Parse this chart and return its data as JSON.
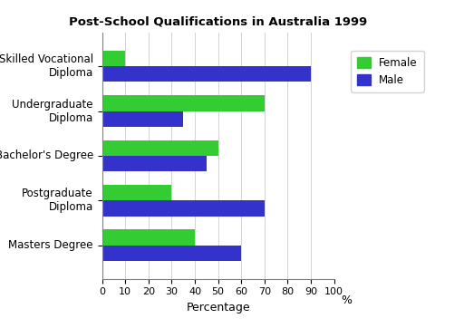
{
  "title": "Post-School Qualifications in Australia 1999",
  "categories": [
    "Masters Degree",
    "Postgraduate\nDiploma",
    "Bachelor's Degree",
    "Undergraduate\nDiploma",
    "Skilled Vocational\nDiploma"
  ],
  "female_values": [
    40,
    30,
    50,
    70,
    10
  ],
  "male_values": [
    60,
    70,
    45,
    35,
    90
  ],
  "female_color": "#33cc33",
  "male_color": "#3333cc",
  "xlabel": "Percentage",
  "xlim": [
    0,
    100
  ],
  "xticks": [
    0,
    10,
    20,
    30,
    40,
    50,
    60,
    70,
    80,
    90,
    100
  ],
  "xtick_labels": [
    "0",
    "10",
    "20",
    "30",
    "40",
    "50",
    "60",
    "70",
    "80",
    "90",
    "100"
  ],
  "percent_label": "%",
  "background_color": "#ffffff",
  "legend_labels": [
    "Female",
    "Male"
  ],
  "bar_height": 0.35,
  "figsize": [
    5.12,
    3.62
  ],
  "dpi": 100
}
